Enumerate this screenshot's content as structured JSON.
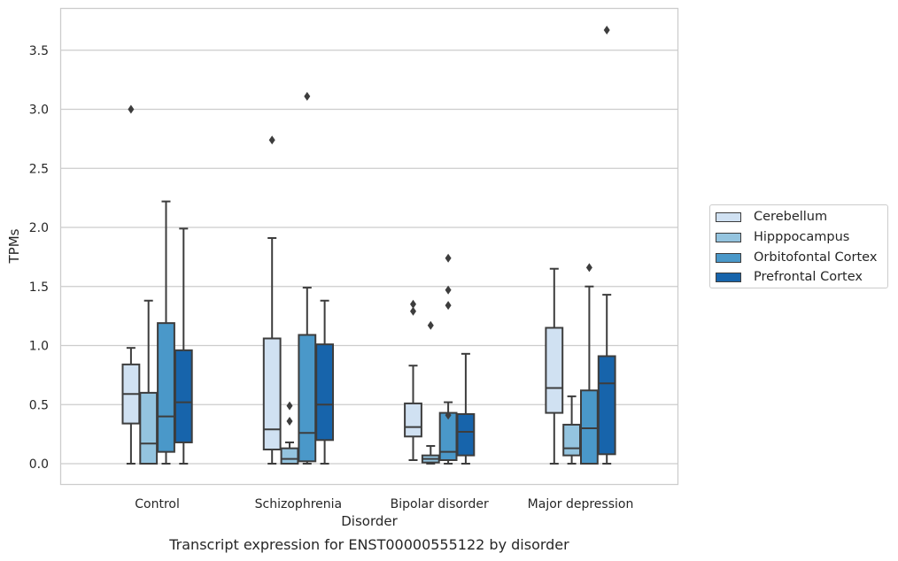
{
  "caption": "Transcript expression for ENST00000555122 by disorder",
  "chart_data": {
    "type": "boxplot",
    "xlabel": "Disorder",
    "ylabel": "TPMs",
    "ylim": [
      -0.18,
      3.87
    ],
    "yticks": [
      "0.0",
      "0.5",
      "1.0",
      "1.5",
      "2.0",
      "2.5",
      "3.0",
      "3.5"
    ],
    "grid": "horizontal",
    "legend_position": "right",
    "categories": [
      "Control",
      "Schizophrenia",
      "Bipolar disorder",
      "Major depression"
    ],
    "series": [
      {
        "name": "Cerebellum",
        "color": "#d0e1f2",
        "boxes": [
          {
            "min": 0.0,
            "q1": 0.34,
            "median": 0.59,
            "q3": 0.84,
            "max": 0.98,
            "outliers": [
              3.0
            ]
          },
          {
            "min": 0.0,
            "q1": 0.12,
            "median": 0.29,
            "q3": 1.06,
            "max": 1.91,
            "outliers": [
              2.74
            ]
          },
          {
            "min": 0.03,
            "q1": 0.23,
            "median": 0.31,
            "q3": 0.51,
            "max": 0.83,
            "outliers": [
              1.29,
              1.35
            ]
          },
          {
            "min": 0.0,
            "q1": 0.43,
            "median": 0.64,
            "q3": 1.15,
            "max": 1.65,
            "outliers": []
          }
        ]
      },
      {
        "name": "Hipppocampus",
        "color": "#94c4df",
        "boxes": [
          {
            "min": 0.0,
            "q1": 0.0,
            "median": 0.17,
            "q3": 0.6,
            "max": 1.38,
            "outliers": []
          },
          {
            "min": 0.0,
            "q1": 0.0,
            "median": 0.04,
            "q3": 0.13,
            "max": 0.18,
            "outliers": [
              0.36,
              0.49
            ]
          },
          {
            "min": 0.0,
            "q1": 0.01,
            "median": 0.04,
            "q3": 0.07,
            "max": 0.15,
            "outliers": [
              1.17
            ]
          },
          {
            "min": 0.0,
            "q1": 0.07,
            "median": 0.13,
            "q3": 0.33,
            "max": 0.57,
            "outliers": []
          }
        ]
      },
      {
        "name": "Orbitofontal Cortex",
        "color": "#4a98c9",
        "boxes": [
          {
            "min": 0.0,
            "q1": 0.1,
            "median": 0.4,
            "q3": 1.19,
            "max": 2.22,
            "outliers": []
          },
          {
            "min": 0.0,
            "q1": 0.02,
            "median": 0.26,
            "q3": 1.09,
            "max": 1.49,
            "outliers": [
              3.11
            ]
          },
          {
            "min": 0.0,
            "q1": 0.03,
            "median": 0.1,
            "q3": 0.43,
            "max": 0.52,
            "outliers": [
              0.41,
              1.34,
              1.47,
              1.74
            ]
          },
          {
            "min": 0.0,
            "q1": 0.0,
            "median": 0.3,
            "q3": 0.62,
            "max": 1.5,
            "outliers": [
              1.66
            ]
          }
        ]
      },
      {
        "name": "Prefrontal Cortex",
        "color": "#1764ab",
        "boxes": [
          {
            "min": 0.0,
            "q1": 0.18,
            "median": 0.52,
            "q3": 0.96,
            "max": 1.99,
            "outliers": []
          },
          {
            "min": 0.0,
            "q1": 0.2,
            "median": 0.5,
            "q3": 1.01,
            "max": 1.38,
            "outliers": []
          },
          {
            "min": 0.0,
            "q1": 0.07,
            "median": 0.27,
            "q3": 0.42,
            "max": 0.93,
            "outliers": []
          },
          {
            "min": 0.0,
            "q1": 0.08,
            "median": 0.68,
            "q3": 0.91,
            "max": 1.43,
            "outliers": [
              3.67
            ]
          }
        ]
      }
    ]
  }
}
